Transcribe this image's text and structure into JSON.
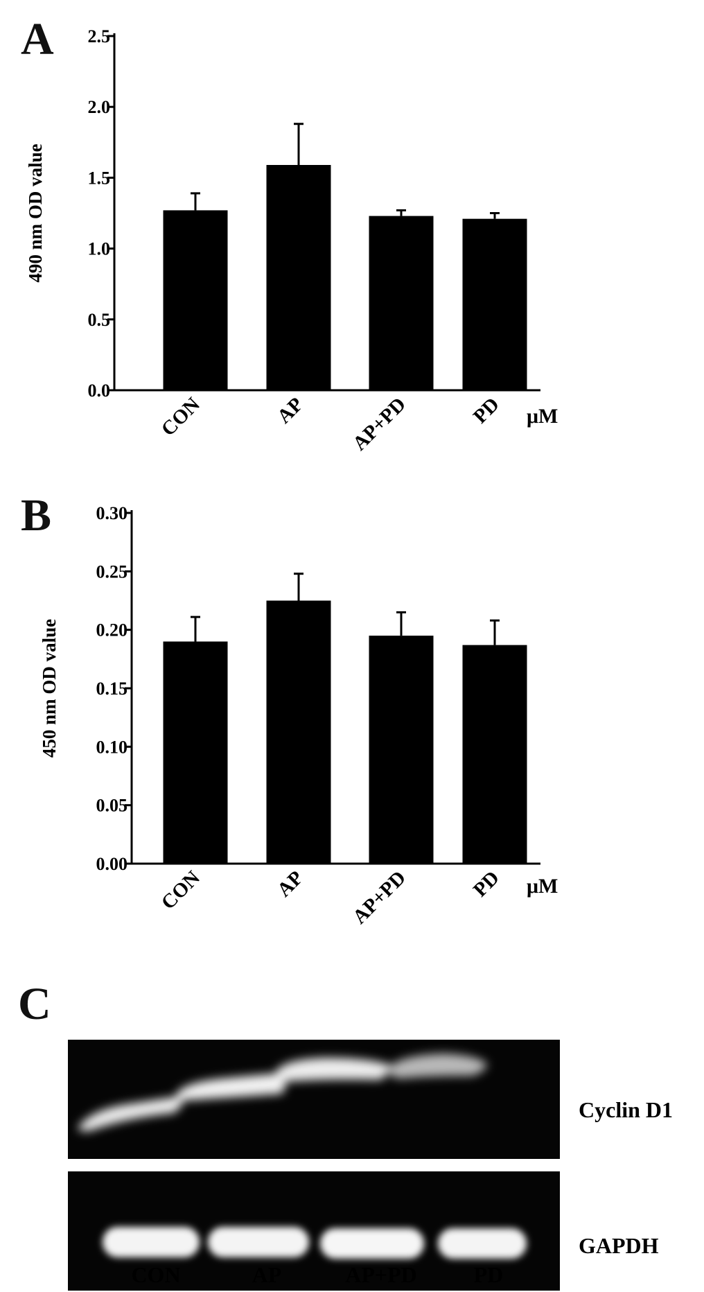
{
  "chart_data": [
    {
      "type": "bar",
      "panel": "A",
      "categories": [
        "CON",
        "AP",
        "AP+PD",
        "PD"
      ],
      "unit_label": "μM",
      "values": [
        1.27,
        1.59,
        1.23,
        1.21
      ],
      "errors": [
        0.12,
        0.29,
        0.04,
        0.04
      ],
      "ylabel": "490 nm OD value",
      "xlabel": "",
      "title": "",
      "ylim": [
        0,
        2.5
      ],
      "yticks": [
        "0.0",
        "0.5",
        "1.0",
        "1.5",
        "2.0",
        "2.5"
      ],
      "bar_color": "#000000",
      "grid": false
    },
    {
      "type": "bar",
      "panel": "B",
      "categories": [
        "CON",
        "AP",
        "AP+PD",
        "PD"
      ],
      "unit_label": "μM",
      "values": [
        0.19,
        0.225,
        0.195,
        0.187
      ],
      "errors": [
        0.021,
        0.023,
        0.02,
        0.021
      ],
      "ylabel": "450 nm OD value",
      "xlabel": "",
      "title": "",
      "ylim": [
        0,
        0.3
      ],
      "yticks": [
        "0.00",
        "0.05",
        "0.10",
        "0.15",
        "0.20",
        "0.25",
        "0.30"
      ],
      "bar_color": "#000000",
      "grid": false
    }
  ],
  "gel": {
    "panel": "C",
    "rows": [
      {
        "label": "Cyclin D1"
      },
      {
        "label": "GAPDH"
      }
    ],
    "lanes": [
      "CON",
      "AP",
      "AP+PD",
      "PD"
    ]
  }
}
